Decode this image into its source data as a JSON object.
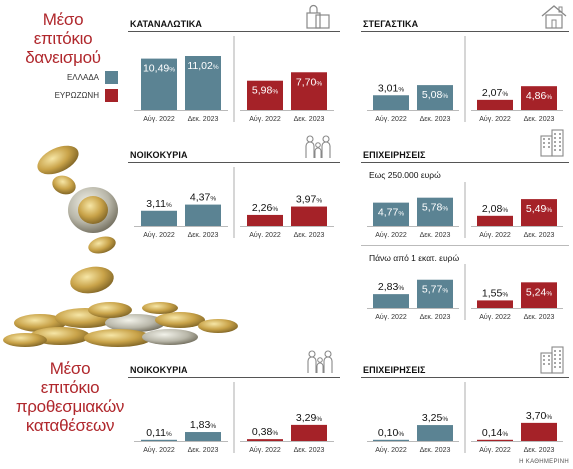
{
  "colors": {
    "greece": "#5b8393",
    "eurozone": "#a52228",
    "accent": "#b0282d"
  },
  "titles": {
    "loans": [
      "Μέσο",
      "επιτόκιο",
      "δανεισμού"
    ],
    "deposits": [
      "Μέσο",
      "επιτόκιο",
      "προθεσμιακών",
      "καταθέσεων"
    ]
  },
  "legend": {
    "greece": "ΕΛΛΑΔΑ",
    "eurozone": "ΕΥΡΩΖΩΝΗ"
  },
  "credit": "Η ΚΑΘΗΜΕΡΙΝΗ",
  "subheads": {
    "small": "Εως 250.000 ευρώ",
    "large": "Πάνω από 1 εκατ. ευρώ"
  },
  "icons": {
    "consumer": "shopping-bag-icon",
    "housing": "house-icon",
    "households_loans": "family-icon",
    "business_loans": "buildings-icon",
    "households_deposits": "family-icon",
    "business_deposits": "buildings-icon"
  },
  "sections": {
    "consumer": "ΚΑΤΑΝΑΛΩΤΙΚΑ",
    "housing": "ΣΤΕΓΑΣΤΙΚΑ",
    "households_loans": "ΝΟΙΚΟΚΥΡΙΑ",
    "business_loans": "ΕΠΙΧΕΙΡΗΣΕΙΣ",
    "households_deposits": "ΝΟΙΚΟΚΥΡΙΑ",
    "business_deposits": "ΕΠΙΧΕΙΡΗΣΕΙΣ"
  },
  "chart_data": [
    {
      "id": "consumer",
      "type": "bar",
      "categories": [
        "Αύγ. 2022",
        "Δεκ. 2023"
      ],
      "series": [
        {
          "name": "ΕΛΛΑΔΑ",
          "values": [
            10.49,
            11.02
          ]
        },
        {
          "name": "ΕΥΡΩΖΩΝΗ",
          "values": [
            5.98,
            7.7
          ]
        }
      ],
      "labels": {
        "greece": [
          "10,49",
          "11,02"
        ],
        "eurozone": [
          "5,98",
          "7,70"
        ]
      },
      "unit": "%"
    },
    {
      "id": "housing",
      "type": "bar",
      "categories": [
        "Αύγ. 2022",
        "Δεκ. 2023"
      ],
      "series": [
        {
          "name": "ΕΛΛΑΔΑ",
          "values": [
            3.01,
            5.08
          ]
        },
        {
          "name": "ΕΥΡΩΖΩΝΗ",
          "values": [
            2.07,
            4.86
          ]
        }
      ],
      "labels": {
        "greece": [
          "3,01",
          "5,08"
        ],
        "eurozone": [
          "2,07",
          "4,86"
        ]
      },
      "unit": "%"
    },
    {
      "id": "households_loans",
      "type": "bar",
      "categories": [
        "Αύγ. 2022",
        "Δεκ. 2023"
      ],
      "series": [
        {
          "name": "ΕΛΛΑΔΑ",
          "values": [
            3.11,
            4.37
          ]
        },
        {
          "name": "ΕΥΡΩΖΩΝΗ",
          "values": [
            2.26,
            3.97
          ]
        }
      ],
      "labels": {
        "greece": [
          "3,11",
          "4,37"
        ],
        "eurozone": [
          "2,26",
          "3,97"
        ]
      },
      "unit": "%"
    },
    {
      "id": "business_small",
      "type": "bar",
      "categories": [
        "Αύγ. 2022",
        "Δεκ. 2023"
      ],
      "series": [
        {
          "name": "ΕΛΛΑΔΑ",
          "values": [
            4.77,
            5.78
          ]
        },
        {
          "name": "ΕΥΡΩΖΩΝΗ",
          "values": [
            2.08,
            5.49
          ]
        }
      ],
      "labels": {
        "greece": [
          "4,77",
          "5,78"
        ],
        "eurozone": [
          "2,08",
          "5,49"
        ]
      },
      "unit": "%"
    },
    {
      "id": "business_large",
      "type": "bar",
      "categories": [
        "Αύγ. 2022",
        "Δεκ. 2023"
      ],
      "series": [
        {
          "name": "ΕΛΛΑΔΑ",
          "values": [
            2.83,
            5.77
          ]
        },
        {
          "name": "ΕΥΡΩΖΩΝΗ",
          "values": [
            1.55,
            5.24
          ]
        }
      ],
      "labels": {
        "greece": [
          "2,83",
          "5,77"
        ],
        "eurozone": [
          "1,55",
          "5,24"
        ]
      },
      "unit": "%"
    },
    {
      "id": "households_deposits",
      "type": "bar",
      "categories": [
        "Αύγ. 2022",
        "Δεκ. 2023"
      ],
      "series": [
        {
          "name": "ΕΛΛΑΔΑ",
          "values": [
            0.11,
            1.83
          ]
        },
        {
          "name": "ΕΥΡΩΖΩΝΗ",
          "values": [
            0.38,
            3.29
          ]
        }
      ],
      "labels": {
        "greece": [
          "0,11",
          "1,83"
        ],
        "eurozone": [
          "0,38",
          "3,29"
        ]
      },
      "unit": "%"
    },
    {
      "id": "business_deposits",
      "type": "bar",
      "categories": [
        "Αύγ. 2022",
        "Δεκ. 2023"
      ],
      "series": [
        {
          "name": "ΕΛΛΑΔΑ",
          "values": [
            0.1,
            3.25
          ]
        },
        {
          "name": "ΕΥΡΩΖΩΝΗ",
          "values": [
            0.14,
            3.7
          ]
        }
      ],
      "labels": {
        "greece": [
          "0,10",
          "3,25"
        ],
        "eurozone": [
          "0,14",
          "3,70"
        ]
      },
      "unit": "%"
    }
  ]
}
